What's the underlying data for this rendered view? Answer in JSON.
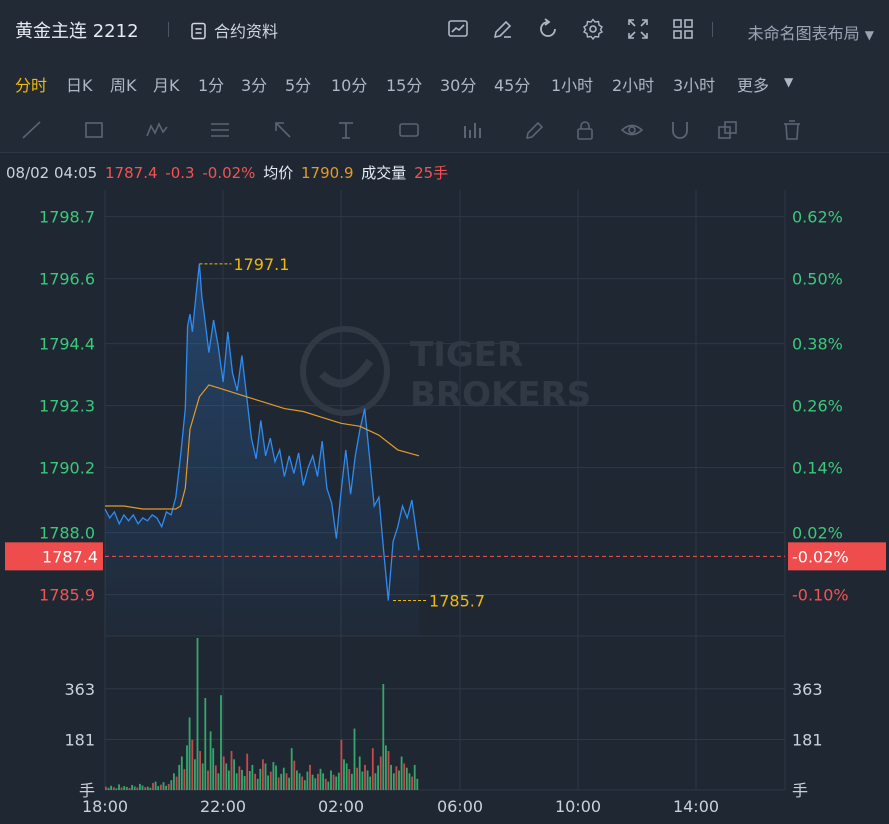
{
  "header": {
    "title": "黄金主连 2212",
    "contract_info": "合约资料",
    "layout_name": "未命名图表布局"
  },
  "periods": {
    "items": [
      "分时",
      "日K",
      "周K",
      "月K",
      "1分",
      "3分",
      "5分",
      "10分",
      "15分",
      "30分",
      "45分",
      "1小时",
      "2小时",
      "3小时",
      "更多"
    ],
    "active": "分时"
  },
  "info": {
    "datetime": "08/02 04:05",
    "price": "1787.4",
    "change": "-0.3",
    "change_pct": "-0.02%",
    "avg_label": "均价",
    "avg_value": "1790.9",
    "volume_label": "成交量",
    "volume_value": "25手"
  },
  "watermark": {
    "line1": "TIGER",
    "line2": "BROKERS"
  },
  "colors": {
    "up": "#3ac97a",
    "down": "#f35353",
    "price_line": "#2f8bf0",
    "avg_line": "#e39a2a",
    "accent": "#f0b90b",
    "label_bg": "#ef4d4d"
  },
  "chart_data": {
    "type": "line",
    "x_ticks": [
      "18:00",
      "22:00",
      "02:00",
      "06:00",
      "10:00",
      "14:00"
    ],
    "y_ticks_left": [
      "1798.7",
      "1796.6",
      "1794.4",
      "1792.3",
      "1790.2",
      "1788.0",
      "1785.9"
    ],
    "y_ticks_right": [
      "0.62%",
      "0.50%",
      "0.38%",
      "0.26%",
      "0.14%",
      "0.02%",
      "-0.10%"
    ],
    "last_price_label": "1787.4",
    "last_pct_label": "-0.02%",
    "high_label": "1797.1",
    "low_label": "1785.7",
    "ylim": [
      1784.5,
      1799.6
    ],
    "xlim_minutes": [
      0,
      1440
    ],
    "price_series": {
      "name": "价格",
      "t": [
        0,
        10,
        20,
        30,
        40,
        50,
        60,
        70,
        80,
        90,
        100,
        110,
        120,
        130,
        140,
        150,
        160,
        170,
        175,
        180,
        185,
        190,
        195,
        200,
        205,
        210,
        220,
        230,
        240,
        250,
        260,
        270,
        280,
        290,
        300,
        310,
        320,
        330,
        340,
        350,
        360,
        370,
        380,
        390,
        400,
        410,
        420,
        430,
        440,
        450,
        460,
        470,
        480,
        490,
        500,
        510,
        520,
        530,
        540,
        550,
        560,
        570,
        580,
        590,
        600,
        610,
        620,
        630,
        640,
        650,
        665
      ],
      "v": [
        1788.8,
        1788.5,
        1788.7,
        1788.3,
        1788.6,
        1788.4,
        1788.6,
        1788.3,
        1788.5,
        1788.4,
        1788.6,
        1788.5,
        1788.2,
        1788.7,
        1788.6,
        1789.2,
        1790.6,
        1792.2,
        1795.0,
        1795.4,
        1794.8,
        1795.6,
        1796.4,
        1797.1,
        1796.0,
        1795.4,
        1794.1,
        1795.2,
        1794.3,
        1793.1,
        1794.8,
        1793.4,
        1792.8,
        1794.0,
        1792.6,
        1791.2,
        1790.5,
        1791.8,
        1790.6,
        1791.2,
        1790.4,
        1790.8,
        1789.9,
        1790.6,
        1790.0,
        1790.7,
        1789.6,
        1790.2,
        1790.6,
        1789.9,
        1791.1,
        1789.5,
        1789.0,
        1787.8,
        1789.4,
        1790.8,
        1789.3,
        1790.6,
        1791.5,
        1792.2,
        1790.6,
        1788.9,
        1789.2,
        1787.4,
        1785.7,
        1787.7,
        1788.2,
        1788.9,
        1788.5,
        1789.1,
        1787.4
      ]
    },
    "avg_series": {
      "name": "均价",
      "t": [
        0,
        40,
        80,
        120,
        150,
        160,
        170,
        180,
        200,
        220,
        260,
        300,
        340,
        380,
        420,
        460,
        500,
        540,
        580,
        620,
        665
      ],
      "v": [
        1788.9,
        1788.9,
        1788.8,
        1788.8,
        1788.8,
        1788.9,
        1789.5,
        1791.5,
        1792.6,
        1793.0,
        1792.8,
        1792.6,
        1792.4,
        1792.2,
        1792.1,
        1791.9,
        1791.7,
        1791.6,
        1791.3,
        1790.8,
        1790.6
      ]
    },
    "volume": {
      "y_ticks": [
        "363",
        "181"
      ],
      "unit": "手",
      "ylim": [
        0,
        545
      ],
      "bars": [
        12,
        8,
        15,
        10,
        6,
        20,
        9,
        14,
        11,
        7,
        18,
        13,
        9,
        22,
        16,
        10,
        12,
        8,
        25,
        30,
        14,
        19,
        28,
        15,
        22,
        35,
        60,
        48,
        90,
        120,
        75,
        160,
        260,
        180,
        110,
        545,
        140,
        95,
        330,
        70,
        210,
        150,
        88,
        60,
        340,
        120,
        95,
        70,
        140,
        110,
        60,
        85,
        72,
        50,
        130,
        68,
        90,
        58,
        40,
        76,
        110,
        95,
        52,
        66,
        100,
        88,
        45,
        58,
        80,
        60,
        44,
        150,
        105,
        70,
        60,
        48,
        35,
        66,
        90,
        55,
        42,
        58,
        76,
        60,
        40,
        30,
        70,
        55,
        48,
        62,
        180,
        110,
        95,
        75,
        58,
        220,
        80,
        120,
        66,
        90,
        70,
        48,
        150,
        60,
        88,
        120,
        380,
        160,
        140,
        90,
        60,
        85,
        70,
        120,
        95,
        80,
        60,
        48,
        90,
        40
      ]
    }
  }
}
